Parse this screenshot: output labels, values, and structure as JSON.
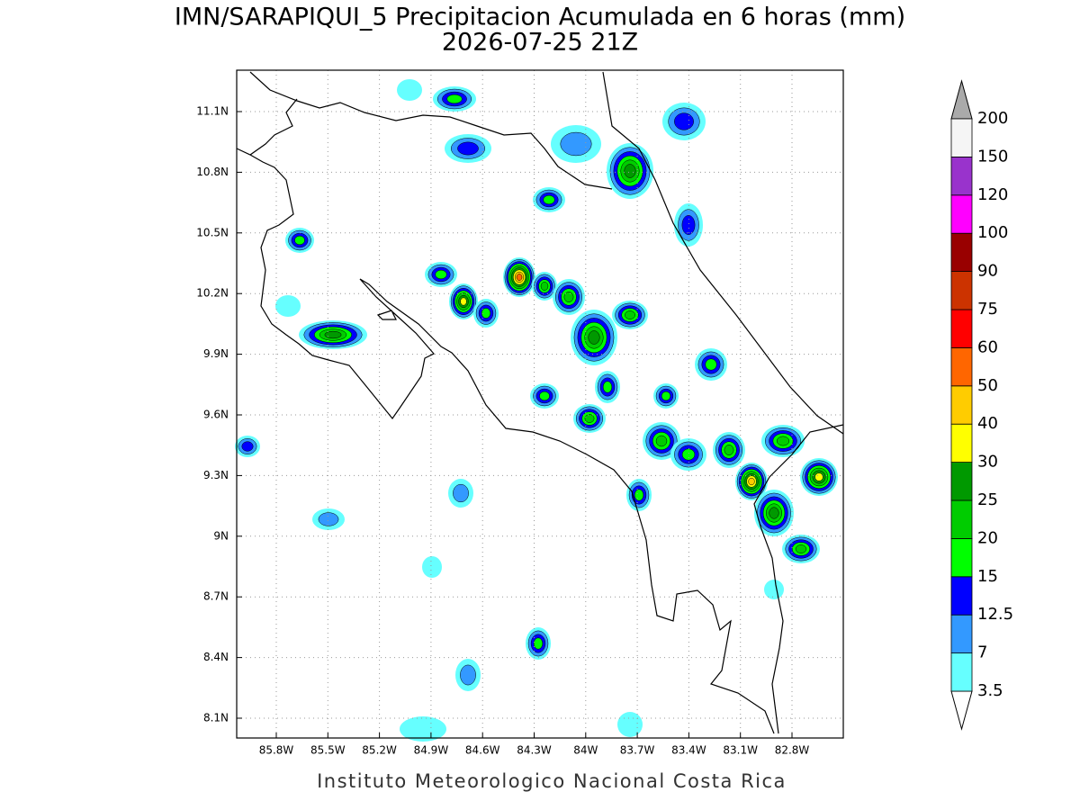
{
  "title": "IMN/SARAPIQUI_5 Precipitacion Acumulada en 6 horas (mm)",
  "subtitle": "2026-07-25 21Z",
  "footer": "Instituto Meteorologico Nacional Costa Rica",
  "map": {
    "lon_labels": [
      "85.8W",
      "85.5W",
      "85.2W",
      "84.9W",
      "84.6W",
      "84.3W",
      "84W",
      "83.7W",
      "83.4W",
      "83.1W",
      "82.8W"
    ],
    "lat_labels": [
      "11.1N",
      "10.8N",
      "10.5N",
      "10.2N",
      "9.9N",
      "9.6N",
      "9.3N",
      "9N",
      "8.7N",
      "8.4N",
      "8.1N"
    ]
  },
  "colorbar": {
    "levels": [
      3.5,
      7,
      12.5,
      15,
      20,
      25,
      30,
      40,
      50,
      60,
      75,
      90,
      100,
      120,
      150,
      200
    ],
    "colors": [
      "#66ffff",
      "#3399ff",
      "#0000ff",
      "#00ff00",
      "#00cc00",
      "#009900",
      "#ffff00",
      "#ffcc00",
      "#ff6600",
      "#ff0000",
      "#cc3300",
      "#990000",
      "#ff00ff",
      "#9933cc",
      "#f5f5f5"
    ],
    "under_color": "#ffffff",
    "over_color": "#aaaaaa"
  }
}
